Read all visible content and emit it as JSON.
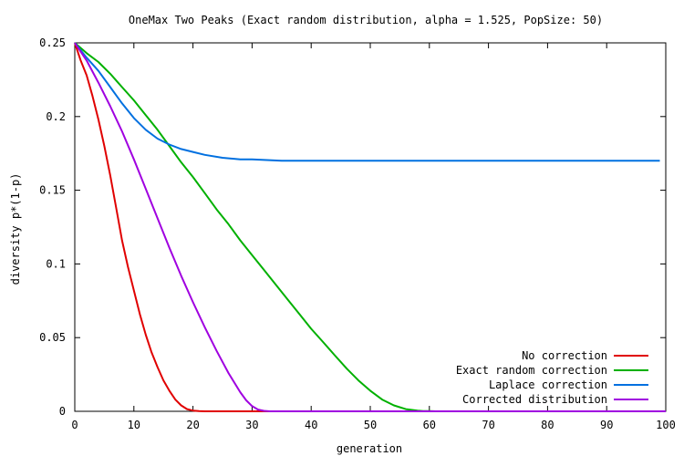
{
  "chart_data": {
    "type": "line",
    "title": "OneMax Two Peaks (Exact random distribution, alpha = 1.525, PopSize: 50)",
    "xlabel": "generation",
    "ylabel": "diversity p*(1-p)",
    "xlim": [
      0,
      100
    ],
    "ylim": [
      0,
      0.25
    ],
    "xticks": [
      "0",
      "10",
      "20",
      "30",
      "40",
      "50",
      "60",
      "70",
      "80",
      "90",
      "100"
    ],
    "yticks": [
      "0",
      "0.05",
      "0.1",
      "0.15",
      "0.2",
      "0.25"
    ],
    "grid": false,
    "legend_position": "bottom-right",
    "series": [
      {
        "name": "No correction",
        "color": "#e00000",
        "x": [
          0,
          1,
          2,
          3,
          4,
          5,
          6,
          7,
          8,
          9,
          10,
          11,
          12,
          13,
          14,
          15,
          16,
          17,
          18,
          19,
          20,
          21,
          22,
          25,
          30,
          40,
          60,
          80,
          100
        ],
        "y": [
          0.25,
          0.238,
          0.228,
          0.214,
          0.198,
          0.18,
          0.16,
          0.138,
          0.116,
          0.098,
          0.082,
          0.066,
          0.052,
          0.04,
          0.03,
          0.021,
          0.014,
          0.008,
          0.004,
          0.0015,
          0.0005,
          0.0001,
          0,
          0,
          0,
          0,
          0,
          0,
          0
        ]
      },
      {
        "name": "Exact random correction",
        "color": "#00b000",
        "x": [
          0,
          2,
          4,
          6,
          8,
          10,
          12,
          14,
          16,
          18,
          20,
          22,
          24,
          26,
          28,
          30,
          32,
          34,
          36,
          38,
          40,
          42,
          44,
          46,
          48,
          50,
          52,
          54,
          56,
          58,
          59,
          60,
          61,
          62,
          65,
          70,
          80,
          90,
          100
        ],
        "y": [
          0.25,
          0.243,
          0.237,
          0.229,
          0.22,
          0.211,
          0.201,
          0.191,
          0.18,
          0.169,
          0.159,
          0.148,
          0.137,
          0.127,
          0.116,
          0.106,
          0.096,
          0.086,
          0.076,
          0.066,
          0.056,
          0.047,
          0.038,
          0.029,
          0.021,
          0.014,
          0.008,
          0.004,
          0.0015,
          0.0005,
          0.0002,
          0.0001,
          0,
          0,
          0,
          0,
          0,
          0,
          0
        ]
      },
      {
        "name": "Laplace correction",
        "color": "#0070e0",
        "x": [
          0,
          2,
          4,
          6,
          8,
          10,
          12,
          14,
          16,
          18,
          20,
          22,
          25,
          28,
          30,
          35,
          40,
          45,
          50,
          55,
          60,
          65,
          70,
          75,
          80,
          85,
          90,
          95,
          99
        ],
        "y": [
          0.25,
          0.24,
          0.231,
          0.22,
          0.209,
          0.199,
          0.191,
          0.185,
          0.181,
          0.178,
          0.176,
          0.174,
          0.172,
          0.171,
          0.171,
          0.17,
          0.17,
          0.17,
          0.17,
          0.17,
          0.17,
          0.17,
          0.17,
          0.17,
          0.17,
          0.17,
          0.17,
          0.17,
          0.17
        ]
      },
      {
        "name": "Corrected distribution",
        "color": "#a000e0",
        "x": [
          0,
          2,
          4,
          6,
          8,
          10,
          12,
          14,
          16,
          18,
          20,
          22,
          24,
          26,
          28,
          29,
          30,
          31,
          32,
          33,
          35,
          40,
          60,
          80,
          100
        ],
        "y": [
          0.25,
          0.238,
          0.223,
          0.207,
          0.19,
          0.171,
          0.151,
          0.131,
          0.111,
          0.092,
          0.074,
          0.057,
          0.041,
          0.026,
          0.013,
          0.0075,
          0.0035,
          0.0012,
          0.0003,
          0,
          0,
          0,
          0,
          0,
          0
        ]
      }
    ]
  }
}
